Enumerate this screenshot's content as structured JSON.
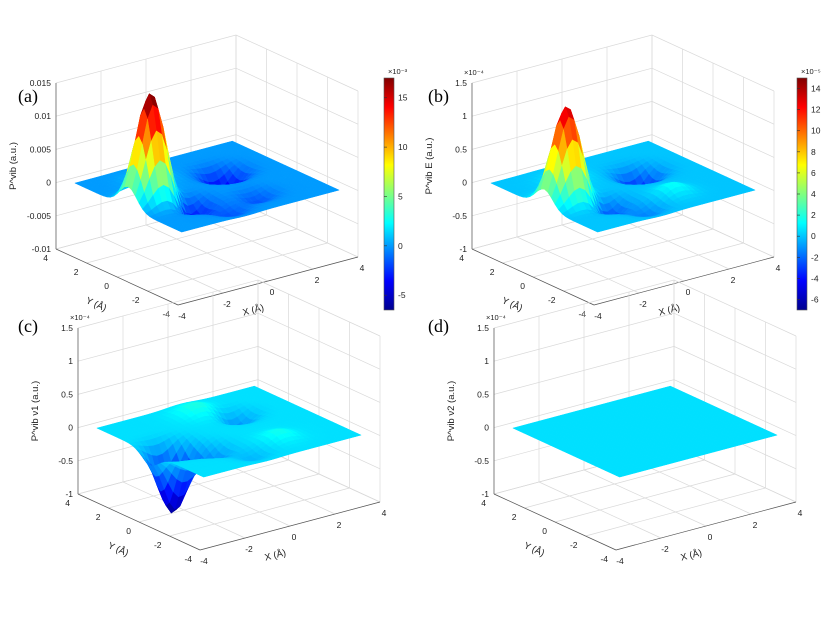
{
  "chart_data": [
    {
      "type": "surface",
      "panel_label": "(a)",
      "zlabel": "P^vib (a.u.)",
      "xlabel": "X (Å)",
      "ylabel": "Y (Å)",
      "xlim": [
        -4,
        4
      ],
      "ylim": [
        -4,
        4
      ],
      "xticks": [
        "-4",
        "-2",
        "0",
        "2",
        "4"
      ],
      "yticks": [
        "-4",
        "-2",
        "0",
        "2",
        "4"
      ],
      "zlim": [
        -0.01,
        0.015
      ],
      "zticks": [
        "-0.01",
        "-0.005",
        "0",
        "0.005",
        "0.01",
        "0.015"
      ],
      "zexponent": "",
      "peaks": [
        {
          "x": 0,
          "y": 2.5,
          "amp": 0.0165,
          "sigma": 0.55
        },
        {
          "x": -2.0,
          "y": 1.2,
          "amp": 0.0012,
          "sigma": 0.6
        },
        {
          "x": 1.0,
          "y": 1.4,
          "amp": -0.0035,
          "sigma": 0.55
        },
        {
          "x": -1.0,
          "y": -1.4,
          "amp": -0.0045,
          "sigma": 0.55
        },
        {
          "x": 1.8,
          "y": -1.0,
          "amp": -0.0015,
          "sigma": 0.5
        },
        {
          "x": 2.4,
          "y": 0.6,
          "amp": -0.0015,
          "sigma": 0.5
        }
      ],
      "colorbar": {
        "exponent": "×10⁻³",
        "ticks": [
          "-5",
          "0",
          "5",
          "10",
          "15"
        ],
        "values": [
          -5,
          0,
          5,
          10,
          15
        ],
        "range": [
          -6.5,
          17
        ]
      }
    },
    {
      "type": "surface",
      "panel_label": "(b)",
      "zlabel": "P^vib E (a.u.)",
      "xlabel": "X (Å)",
      "ylabel": "Y (Å)",
      "xlim": [
        -4,
        4
      ],
      "ylim": [
        -4,
        4
      ],
      "xticks": [
        "-4",
        "-2",
        "0",
        "2",
        "4"
      ],
      "yticks": [
        "-4",
        "-2",
        "0",
        "2",
        "4"
      ],
      "zlim": [
        -1,
        1.5
      ],
      "zticks": [
        "-1",
        "-0.5",
        "0",
        "0.5",
        "1",
        "1.5"
      ],
      "zexponent": "×10⁻⁴",
      "peaks": [
        {
          "x": 0,
          "y": 2.5,
          "amp": 1.45,
          "sigma": 0.55
        },
        {
          "x": -2.0,
          "y": 1.2,
          "amp": 0.12,
          "sigma": 0.6
        },
        {
          "x": 1.0,
          "y": 1.4,
          "amp": -0.3,
          "sigma": 0.55
        },
        {
          "x": -1.0,
          "y": -1.4,
          "amp": -0.45,
          "sigma": 0.55
        },
        {
          "x": 1.8,
          "y": -1.0,
          "amp": 0.15,
          "sigma": 0.5
        },
        {
          "x": 2.4,
          "y": 0.6,
          "amp": -0.15,
          "sigma": 0.5
        }
      ],
      "colorbar": {
        "exponent": "×10⁻⁵",
        "ticks": [
          "-6",
          "-4",
          "-2",
          "0",
          "2",
          "4",
          "6",
          "8",
          "10",
          "12",
          "14"
        ],
        "values": [
          -6,
          -4,
          -2,
          0,
          2,
          4,
          6,
          8,
          10,
          12,
          14
        ],
        "range": [
          -7,
          15
        ]
      }
    },
    {
      "type": "surface",
      "panel_label": "(c)",
      "zlabel": "P^vib ν1 (a.u.)",
      "xlabel": "X (Å)",
      "ylabel": "Y (Å)",
      "xlim": [
        -4,
        4
      ],
      "ylim": [
        -4,
        4
      ],
      "xticks": [
        "-4",
        "-2",
        "0",
        "2",
        "4"
      ],
      "yticks": [
        "-4",
        "-2",
        "0",
        "2",
        "4"
      ],
      "zlim": [
        -1,
        1.5
      ],
      "zticks": [
        "-1",
        "-0.5",
        "0",
        "0.5",
        "1",
        "1.5"
      ],
      "zexponent": "×10⁻⁴",
      "peaks": [
        {
          "x": 0,
          "y": 2.5,
          "amp": -1.0,
          "sigma": 0.55
        },
        {
          "x": -2.4,
          "y": -0.2,
          "amp": 0.15,
          "sigma": 0.6
        },
        {
          "x": 1.0,
          "y": 1.4,
          "amp": -0.25,
          "sigma": 0.5
        },
        {
          "x": -1.4,
          "y": -1.3,
          "amp": -0.25,
          "sigma": 0.5
        },
        {
          "x": 1.8,
          "y": -1.0,
          "amp": 0.12,
          "sigma": 0.5
        },
        {
          "x": 2.4,
          "y": 0.6,
          "amp": -0.12,
          "sigma": 0.5
        }
      ],
      "colorbar": null
    },
    {
      "type": "surface",
      "panel_label": "(d)",
      "zlabel": "P^vib ν2 (a.u.)",
      "xlabel": "X (Å)",
      "ylabel": "Y (Å)",
      "xlim": [
        -4,
        4
      ],
      "ylim": [
        -4,
        4
      ],
      "xticks": [
        "-4",
        "-2",
        "0",
        "2",
        "4"
      ],
      "yticks": [
        "-4",
        "-2",
        "0",
        "2",
        "4"
      ],
      "zlim": [
        -1,
        1.5
      ],
      "zticks": [
        "-1",
        "-0.5",
        "0",
        "0.5",
        "1",
        "1.5"
      ],
      "zexponent": "×10⁻⁴",
      "peaks": [],
      "colorbar": null
    }
  ]
}
